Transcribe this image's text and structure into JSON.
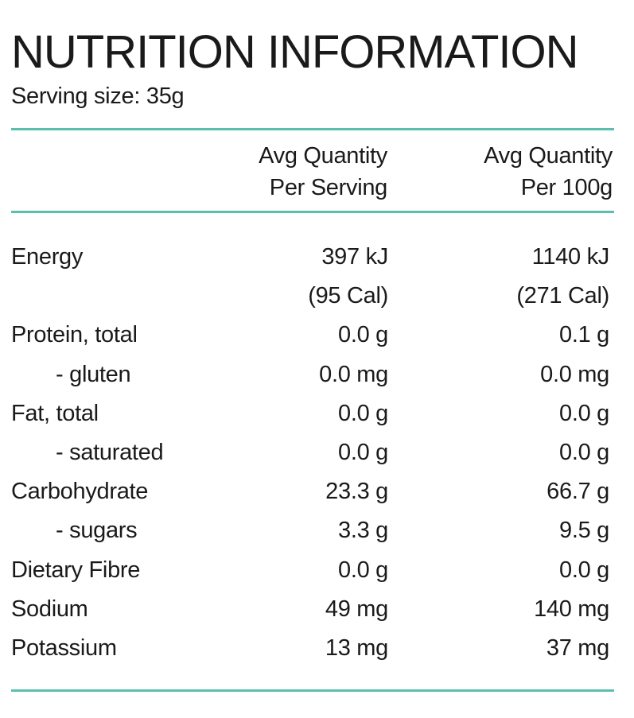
{
  "title": "NUTRITION INFORMATION",
  "serving_size": "Serving size: 35g",
  "colors": {
    "rule": "#5bbfae",
    "text": "#1a1a1a"
  },
  "columns": {
    "per_serving": {
      "line1": "Avg Quantity",
      "line2": "Per Serving"
    },
    "per_100g": {
      "line1": "Avg Quantity",
      "line2": "Per 100g"
    }
  },
  "rows": [
    {
      "label": "Energy",
      "per_serving": "397 kJ",
      "per_100g": "1140 kJ",
      "sub": false
    },
    {
      "label": "",
      "per_serving": "(95 Cal)",
      "per_100g": "(271 Cal)",
      "sub": false
    },
    {
      "label": "Protein, total",
      "per_serving": "0.0 g",
      "per_100g": "0.1 g",
      "sub": false
    },
    {
      "label": "- gluten",
      "per_serving": "0.0 mg",
      "per_100g": "0.0 mg",
      "sub": true
    },
    {
      "label": "Fat, total",
      "per_serving": "0.0 g",
      "per_100g": "0.0 g",
      "sub": false
    },
    {
      "label": "- saturated",
      "per_serving": "0.0 g",
      "per_100g": "0.0 g",
      "sub": true
    },
    {
      "label": "Carbohydrate",
      "per_serving": "23.3 g",
      "per_100g": "66.7 g",
      "sub": false
    },
    {
      "label": "- sugars",
      "per_serving": "3.3 g",
      "per_100g": "9.5 g",
      "sub": true
    },
    {
      "label": "Dietary Fibre",
      "per_serving": "0.0 g",
      "per_100g": "0.0 g",
      "sub": false
    },
    {
      "label": "Sodium",
      "per_serving": "49 mg",
      "per_100g": "140 mg",
      "sub": false
    },
    {
      "label": "Potassium",
      "per_serving": "13 mg",
      "per_100g": "37 mg",
      "sub": false
    }
  ]
}
